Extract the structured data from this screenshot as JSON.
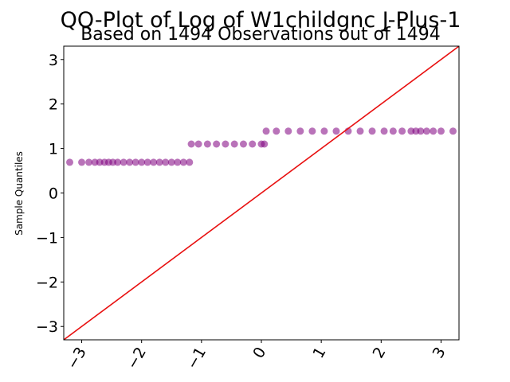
{
  "chart_data": {
    "type": "scatter",
    "title": "QQ-Plot of Log of W1childgnc J-Plus-1",
    "subtitle": "Based on 1494 Observations out of 1494",
    "xlabel": "",
    "ylabel": "Sample Quantiles",
    "xlim": [
      -3.3,
      3.3
    ],
    "ylim": [
      -3.3,
      3.3
    ],
    "x_ticks": [
      -3,
      -2,
      -1,
      0,
      1,
      2,
      3
    ],
    "y_ticks": [
      -3,
      -2,
      -1,
      0,
      1,
      2,
      3
    ],
    "x_tick_labels": [
      "−3",
      "−2",
      "−1",
      "0",
      "1",
      "2",
      "3"
    ],
    "y_tick_labels": [
      "−3",
      "−2",
      "−1",
      "0",
      "1",
      "2",
      "3"
    ],
    "grid": false,
    "colors": {
      "points": "#800080",
      "reference_line": "#e81010"
    },
    "series": [
      {
        "values_description": "",
        "points": [
          {
            "x": -3.2,
            "y": 0.69
          },
          {
            "x": -3.0,
            "y": 0.69
          },
          {
            "x": -2.88,
            "y": 0.69
          },
          {
            "x": -2.78,
            "y": 0.69
          },
          {
            "x": -2.7,
            "y": 0.69
          },
          {
            "x": -2.62,
            "y": 0.69
          },
          {
            "x": -2.55,
            "y": 0.69
          },
          {
            "x": -2.48,
            "y": 0.69
          },
          {
            "x": -2.4,
            "y": 0.69
          },
          {
            "x": -2.3,
            "y": 0.69
          },
          {
            "x": -2.2,
            "y": 0.69
          },
          {
            "x": -2.1,
            "y": 0.69
          },
          {
            "x": -2.0,
            "y": 0.69
          },
          {
            "x": -1.9,
            "y": 0.69
          },
          {
            "x": -1.8,
            "y": 0.69
          },
          {
            "x": -1.7,
            "y": 0.69
          },
          {
            "x": -1.6,
            "y": 0.69
          },
          {
            "x": -1.5,
            "y": 0.69
          },
          {
            "x": -1.4,
            "y": 0.69
          },
          {
            "x": -1.3,
            "y": 0.69
          },
          {
            "x": -1.2,
            "y": 0.69
          },
          {
            "x": -1.17,
            "y": 1.1
          },
          {
            "x": -1.05,
            "y": 1.1
          },
          {
            "x": -0.9,
            "y": 1.1
          },
          {
            "x": -0.75,
            "y": 1.1
          },
          {
            "x": -0.6,
            "y": 1.1
          },
          {
            "x": -0.45,
            "y": 1.1
          },
          {
            "x": -0.3,
            "y": 1.1
          },
          {
            "x": -0.15,
            "y": 1.1
          },
          {
            "x": 0.0,
            "y": 1.1
          },
          {
            "x": 0.05,
            "y": 1.1
          },
          {
            "x": 0.08,
            "y": 1.39
          },
          {
            "x": 0.25,
            "y": 1.39
          },
          {
            "x": 0.45,
            "y": 1.39
          },
          {
            "x": 0.65,
            "y": 1.39
          },
          {
            "x": 0.85,
            "y": 1.39
          },
          {
            "x": 1.05,
            "y": 1.39
          },
          {
            "x": 1.25,
            "y": 1.39
          },
          {
            "x": 1.45,
            "y": 1.39
          },
          {
            "x": 1.65,
            "y": 1.39
          },
          {
            "x": 1.85,
            "y": 1.39
          },
          {
            "x": 2.05,
            "y": 1.39
          },
          {
            "x": 2.2,
            "y": 1.39
          },
          {
            "x": 2.35,
            "y": 1.39
          },
          {
            "x": 2.5,
            "y": 1.39
          },
          {
            "x": 2.58,
            "y": 1.39
          },
          {
            "x": 2.66,
            "y": 1.39
          },
          {
            "x": 2.76,
            "y": 1.39
          },
          {
            "x": 2.87,
            "y": 1.39
          },
          {
            "x": 3.0,
            "y": 1.39
          },
          {
            "x": 3.2,
            "y": 1.39
          }
        ]
      }
    ],
    "reference_line": {
      "slope": 1,
      "intercept": 0
    }
  }
}
